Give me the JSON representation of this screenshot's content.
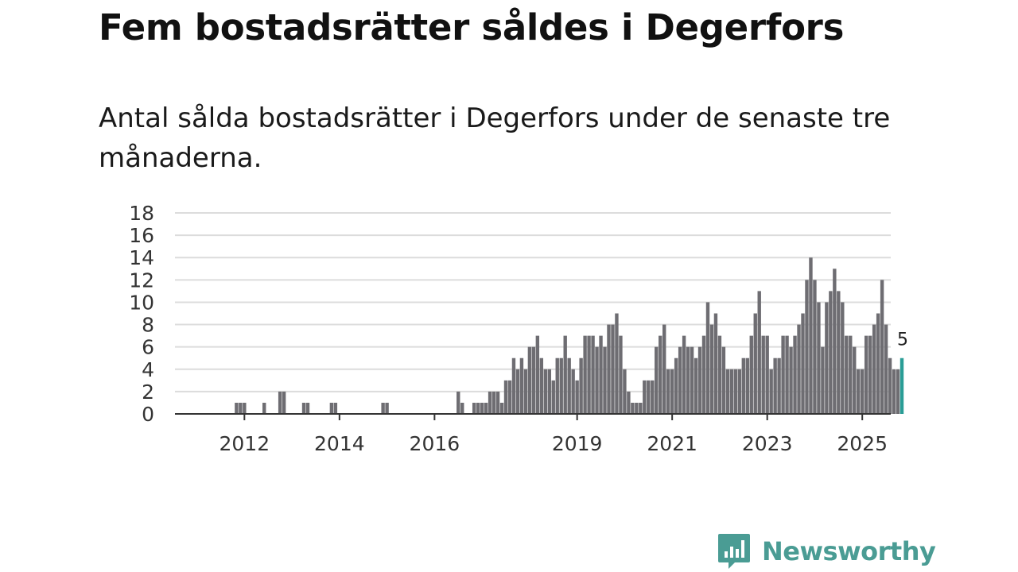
{
  "title": "Fem bostadsrätter såldes i Degerfors",
  "subtitle": "Antal sålda bostadsrätter i Degerfors under de senaste tre månaderna.",
  "brand": {
    "name": "Newsworthy",
    "icon": "newsworthy-logo-icon",
    "color": "#4a9c94"
  },
  "chart_data": {
    "type": "bar",
    "title": "",
    "xlabel": "",
    "ylabel": "",
    "ylim": [
      0,
      18
    ],
    "yticks": [
      "0",
      "2",
      "4",
      "6",
      "8",
      "10",
      "12",
      "14",
      "16",
      "18"
    ],
    "xticks": [
      "2012",
      "2014",
      "2016",
      "2019",
      "2021",
      "2023",
      "2025"
    ],
    "x_start": "2011-04",
    "x_end": "2025-09",
    "grid": true,
    "bar_color": "#6e6d72",
    "highlight_color": "#2a9d96",
    "series": [
      {
        "name": "Sålda bostadsrätter",
        "values": [
          0,
          0,
          0,
          0,
          0,
          0,
          0,
          1,
          1,
          1,
          0,
          0,
          0,
          0,
          1,
          0,
          0,
          0,
          2,
          2,
          0,
          0,
          0,
          0,
          1,
          1,
          0,
          0,
          0,
          0,
          0,
          1,
          1,
          0,
          0,
          0,
          0,
          0,
          0,
          0,
          0,
          0,
          0,
          0,
          1,
          1,
          0,
          0,
          0,
          0,
          0,
          0,
          0,
          0,
          0,
          0,
          0,
          0,
          0,
          0,
          0,
          0,
          0,
          2,
          1,
          0,
          0,
          1,
          1,
          1,
          1,
          2,
          2,
          2,
          1,
          3,
          3,
          5,
          4,
          5,
          4,
          6,
          6,
          7,
          5,
          4,
          4,
          3,
          5,
          5,
          7,
          5,
          4,
          3,
          5,
          7,
          7,
          7,
          6,
          7,
          6,
          8,
          8,
          9,
          7,
          4,
          2,
          1,
          1,
          1,
          3,
          3,
          3,
          6,
          7,
          8,
          4,
          4,
          5,
          6,
          7,
          6,
          6,
          5,
          6,
          7,
          10,
          8,
          9,
          7,
          6,
          4,
          4,
          4,
          4,
          5,
          5,
          7,
          9,
          11,
          7,
          7,
          4,
          5,
          5,
          7,
          7,
          6,
          7,
          8,
          9,
          12,
          14,
          12,
          10,
          6,
          10,
          11,
          13,
          11,
          10,
          7,
          7,
          6,
          4,
          4,
          7,
          7,
          8,
          9,
          12,
          8,
          5,
          4,
          4,
          5
        ]
      }
    ],
    "last_label": "5"
  }
}
